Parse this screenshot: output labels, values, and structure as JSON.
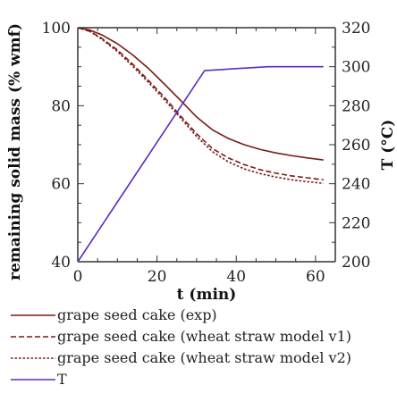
{
  "chart_data": {
    "type": "line",
    "xlabel": "t (min)",
    "ylabel": "remaining solid mass (% wmf)",
    "y2label": "T (°C)",
    "xlim": [
      0,
      65
    ],
    "ylim": [
      40,
      100
    ],
    "y2lim": [
      200,
      320
    ],
    "xticks": [
      0,
      20,
      40,
      60
    ],
    "yticks": [
      40,
      60,
      80,
      100
    ],
    "y2ticks": [
      200,
      220,
      240,
      260,
      280,
      300,
      320
    ],
    "grid": false,
    "legend_position": "bottom",
    "series": [
      {
        "name": "grape seed cake (exp)",
        "axis": "left",
        "color": "#7a1a12",
        "dash": "solid",
        "x": [
          0,
          3,
          6,
          10,
          14,
          18,
          22,
          26,
          30,
          34,
          38,
          42,
          46,
          50,
          54,
          58,
          62
        ],
        "y": [
          100,
          99.4,
          98.2,
          95.9,
          92.9,
          89.4,
          85.4,
          81.3,
          77.1,
          73.8,
          71.6,
          70.0,
          68.8,
          67.9,
          67.2,
          66.6,
          66.1
        ]
      },
      {
        "name": "grape seed cake (wheat straw model v1)",
        "axis": "left",
        "color": "#7a1a12",
        "dash": "dashed",
        "x": [
          0,
          3,
          6,
          10,
          14,
          18,
          22,
          26,
          30,
          34,
          38,
          42,
          46,
          50,
          54,
          58,
          62
        ],
        "y": [
          100,
          99.1,
          97.3,
          94.3,
          90.5,
          86.3,
          82.0,
          77.3,
          72.8,
          69.0,
          66.6,
          64.9,
          63.6,
          62.7,
          62.0,
          61.5,
          61.0
        ]
      },
      {
        "name": "grape seed cake (wheat straw model v2)",
        "axis": "left",
        "color": "#7a1a12",
        "dash": "dotted",
        "x": [
          0,
          3,
          6,
          10,
          14,
          18,
          22,
          26,
          30,
          34,
          38,
          42,
          46,
          50,
          54,
          58,
          62
        ],
        "y": [
          100,
          99.1,
          97.1,
          93.9,
          90.0,
          85.8,
          81.4,
          76.8,
          72.1,
          68.2,
          65.6,
          63.8,
          62.6,
          61.7,
          61.0,
          60.5,
          60.1
        ]
      },
      {
        "name": "T",
        "axis": "right",
        "color": "#5b2dbb",
        "dash": "solid",
        "x": [
          0,
          32,
          40,
          48,
          56,
          62
        ],
        "y": [
          200,
          298,
          299,
          300,
          300,
          300
        ]
      }
    ]
  }
}
